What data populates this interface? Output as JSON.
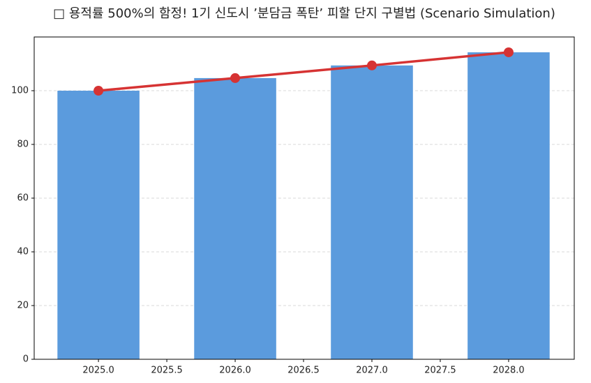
{
  "chart_data": {
    "type": "combo",
    "title": "□ 용적률 500%의 함정! 1기 신도시 ’분담금 폭탄’ 피할 단지 구별법 (Scenario Simulation)",
    "x": [
      2025,
      2026,
      2027,
      2028
    ],
    "series": [
      {
        "type": "bar",
        "color": "#5b9bdd",
        "values": [
          100,
          104.7,
          109.4,
          114.3
        ]
      },
      {
        "type": "line",
        "color": "#d63333",
        "values": [
          100,
          104.7,
          109.4,
          114.3
        ]
      }
    ],
    "xlim": [
      2024.53,
      2028.48
    ],
    "xticks": [
      {
        "value": 2025,
        "label": "2025.0"
      },
      {
        "value": 2025.5,
        "label": "2025.5"
      },
      {
        "value": 2026,
        "label": "2026.0"
      },
      {
        "value": 2026.5,
        "label": "2026.5"
      },
      {
        "value": 2027,
        "label": "2027.0"
      },
      {
        "value": 2027.5,
        "label": "2027.5"
      },
      {
        "value": 2028,
        "label": "2028.0"
      }
    ],
    "ylim": [
      0,
      120
    ],
    "yticks": [
      0,
      20,
      40,
      60,
      80,
      100
    ],
    "grid": true
  }
}
